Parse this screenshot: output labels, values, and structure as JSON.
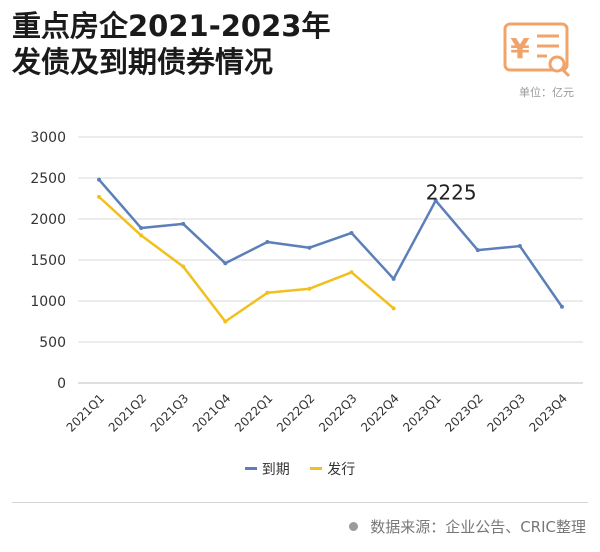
{
  "header": {
    "title_line1": "重点房企2021-2023年",
    "title_line2": "发债及到期债券情况",
    "unit": "单位：亿元"
  },
  "logo": {
    "icon": "yen-document-search-icon",
    "color": "#f0a46a",
    "glyph": "¥"
  },
  "footer": {
    "source": "数据来源：企业公告、CRIC整理"
  },
  "colors": {
    "due": "#5b7fb8",
    "issued": "#f2c01e",
    "grid": "#d9d9d9"
  },
  "chart_data": {
    "type": "line",
    "categories": [
      "2021Q1",
      "2021Q2",
      "2021Q3",
      "2021Q4",
      "2022Q1",
      "2022Q2",
      "2022Q3",
      "2022Q4",
      "2023Q1",
      "2023Q2",
      "2023Q3",
      "2023Q4"
    ],
    "ylim": [
      0,
      3000
    ],
    "yticks": [
      0,
      500,
      1000,
      1500,
      2000,
      2500,
      3000
    ],
    "grid": true,
    "legend_position": "bottom",
    "series": [
      {
        "name": "到期",
        "color": "#5b7fb8",
        "values": [
          2480,
          1890,
          1940,
          1460,
          1720,
          1650,
          1830,
          1270,
          2225,
          1620,
          1670,
          930
        ]
      },
      {
        "name": "发行",
        "color": "#f2c01e",
        "values": [
          2270,
          1800,
          1420,
          750,
          1100,
          1150,
          1350,
          910,
          null,
          null,
          null,
          null
        ]
      }
    ],
    "annotations": [
      {
        "label": "2225",
        "category": "2023Q1",
        "value": 2225
      }
    ]
  }
}
